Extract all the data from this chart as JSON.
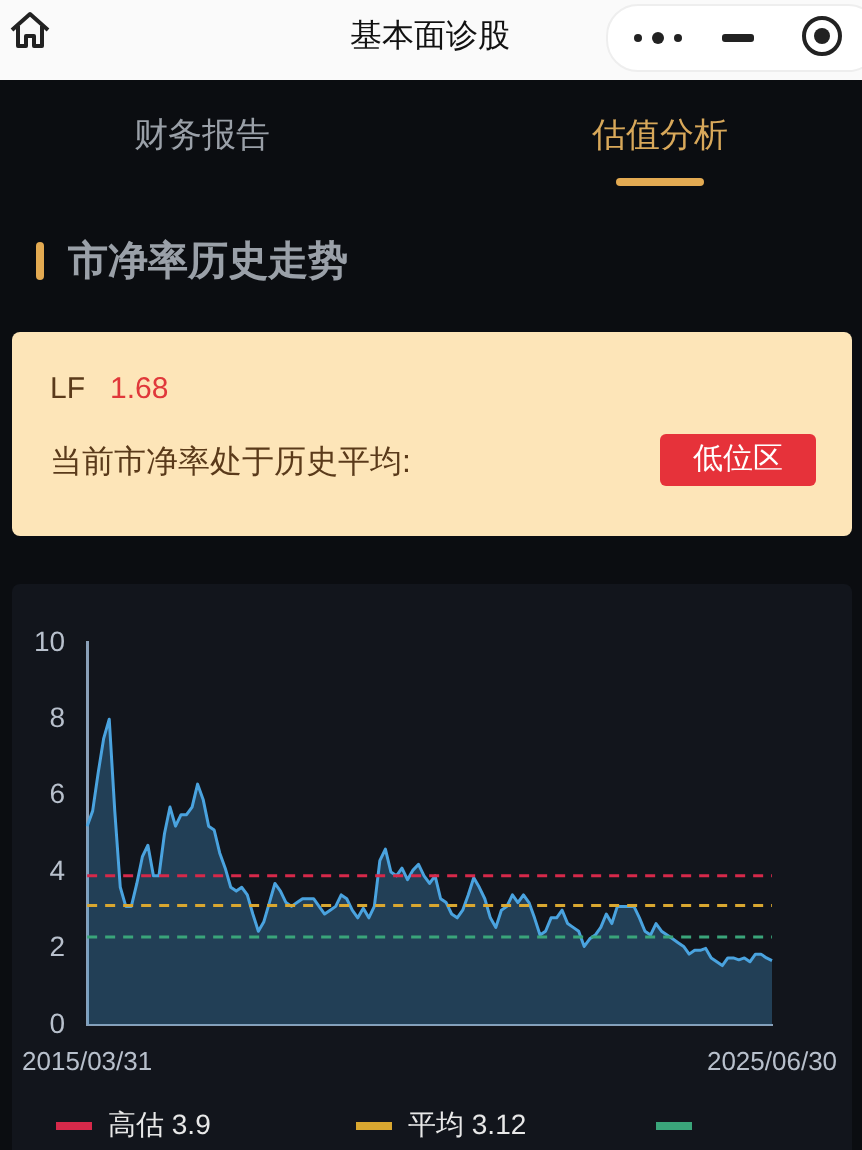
{
  "chart_data": {
    "type": "area",
    "title": "市净率历史走势",
    "annotations": [
      "基本面诊股",
      "财务报告",
      "估值分析",
      "LF",
      "1.68",
      "当前市净率处于历史平均:",
      "低位区"
    ],
    "categories": [
      "2015/03/31",
      null,
      null,
      null,
      null,
      null,
      null,
      null,
      null,
      null,
      null,
      null,
      null,
      null,
      null,
      null,
      null,
      null,
      null,
      null,
      null,
      null,
      null,
      null,
      null,
      null,
      null,
      null,
      null,
      null,
      null,
      null,
      null,
      null,
      null,
      null,
      null,
      null,
      null,
      null,
      null,
      null,
      null,
      null,
      null,
      null,
      null,
      null,
      null,
      null,
      null,
      null,
      null,
      null,
      null,
      null,
      null,
      null,
      null,
      null,
      null,
      null,
      null,
      null,
      null,
      null,
      null,
      null,
      null,
      null,
      null,
      null,
      null,
      null,
      null,
      null,
      null,
      null,
      null,
      null,
      null,
      null,
      null,
      null,
      null,
      null,
      null,
      null,
      null,
      null,
      null,
      null,
      null,
      null,
      null,
      null,
      null,
      null,
      null,
      null,
      null,
      null,
      null,
      null,
      null,
      null,
      null,
      null,
      null,
      null,
      null,
      null,
      null,
      null,
      null,
      null,
      null,
      null,
      null,
      null,
      null,
      null,
      null,
      null,
      "2025/06/30"
    ],
    "series": [
      {
        "color": "#4aa3df",
        "values": [
          5.2,
          5.6,
          6.6,
          7.5,
          8.0,
          5.6,
          3.6,
          3.1,
          3.1,
          3.7,
          4.4,
          4.7,
          3.9,
          3.9,
          5.0,
          5.7,
          5.2,
          5.5,
          5.5,
          5.7,
          6.3,
          5.9,
          5.2,
          5.1,
          4.5,
          4.1,
          3.6,
          3.5,
          3.6,
          3.4,
          2.9,
          2.45,
          2.7,
          3.2,
          3.7,
          3.5,
          3.2,
          3.1,
          3.2,
          3.3,
          3.3,
          3.3,
          3.1,
          2.9,
          3.0,
          3.1,
          3.4,
          3.3,
          3.0,
          2.8,
          3.05,
          2.8,
          3.1,
          4.3,
          4.6,
          4.0,
          3.9,
          4.1,
          3.8,
          4.05,
          4.2,
          3.9,
          3.7,
          3.9,
          3.3,
          3.2,
          2.9,
          2.8,
          3.0,
          3.4,
          3.85,
          3.6,
          3.3,
          2.8,
          2.55,
          3.0,
          3.1,
          3.4,
          3.2,
          3.4,
          3.2,
          2.8,
          2.35,
          2.45,
          2.8,
          2.8,
          3.0,
          2.65,
          2.55,
          2.45,
          2.05,
          2.25,
          2.35,
          2.55,
          2.9,
          2.65,
          3.1,
          3.1,
          3.1,
          3.1,
          2.8,
          2.45,
          2.35,
          2.65,
          2.45,
          2.35,
          2.25,
          2.15,
          2.05,
          1.85,
          1.95,
          1.95,
          2.0,
          1.75,
          1.65,
          1.55,
          1.75,
          1.75,
          1.7,
          1.75,
          1.65,
          1.85,
          1.85,
          1.75,
          1.68
        ]
      }
    ],
    "ylim": [
      0,
      10
    ],
    "yticks": [
      0,
      2,
      4,
      6,
      8,
      10
    ],
    "grid": false,
    "legend": "bottom",
    "marker": "none",
    "ref_lines": [
      {
        "axis": "y",
        "value": 3.9,
        "label": "高估 3.9",
        "color": "#d6294a",
        "line_style": "dashed"
      },
      {
        "axis": "y",
        "value": 3.12,
        "label": "平均 3.12",
        "color": "#d9a730",
        "line_style": "dashed"
      },
      {
        "axis": "y",
        "value": 2.3,
        "label": null,
        "color": "#3aa57a",
        "line_style": "dashed"
      }
    ]
  }
}
